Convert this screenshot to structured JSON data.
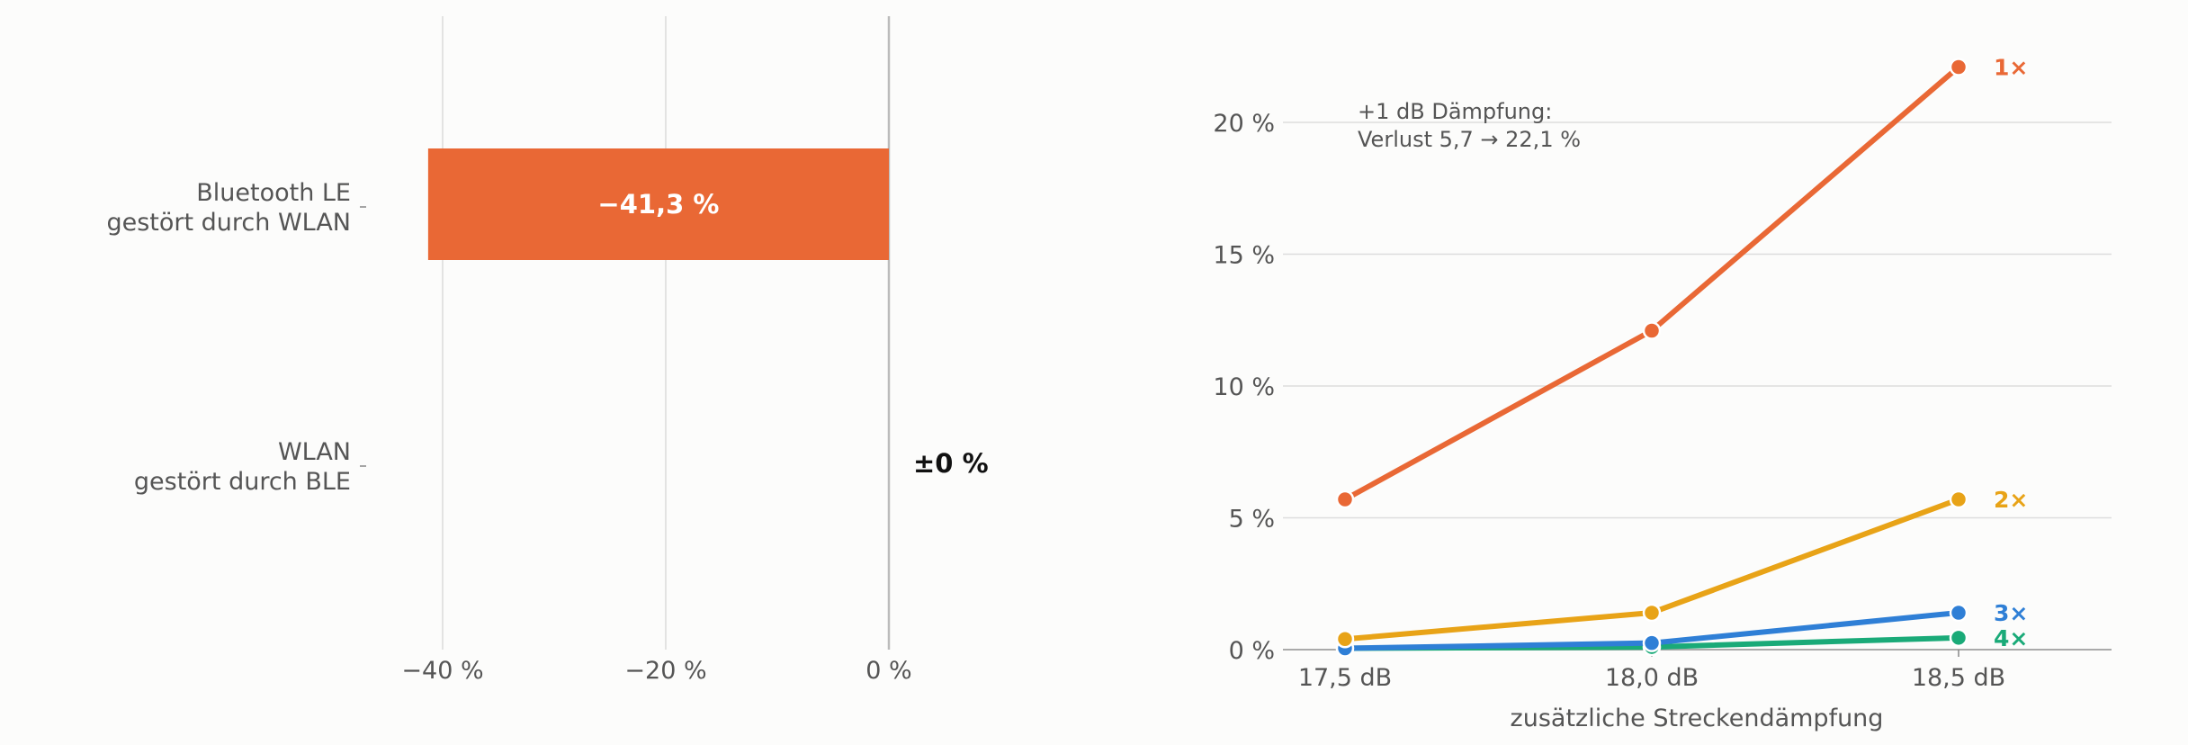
{
  "chart_data": [
    {
      "type": "bar",
      "orientation": "horizontal",
      "categories": [
        [
          "Bluetooth LE",
          "gestört durch WLAN"
        ],
        [
          "WLAN",
          "gestört durch BLE"
        ]
      ],
      "values": [
        -41.3,
        0
      ],
      "value_labels": [
        "−41,3 %",
        "±0 %"
      ],
      "xlim": [
        -45,
        0
      ],
      "xticks": [
        -40,
        -20,
        0
      ],
      "xtick_labels": [
        "−40 %",
        "−20 %",
        "0 %"
      ],
      "grid": "vertical",
      "colors": {
        "bar": "#e96835",
        "grid": "#dddddd",
        "zero_line": "#bbbbbb"
      }
    },
    {
      "type": "line",
      "x": [
        17.5,
        18.0,
        18.5
      ],
      "xtick_labels": [
        "17,5 dB",
        "18,0 dB",
        "18,5 dB"
      ],
      "xlabel": "zusätzliche Streckendämpfung",
      "ylim": [
        0,
        23
      ],
      "yticks": [
        0,
        5,
        10,
        15,
        20
      ],
      "ytick_labels": [
        "0 %",
        "5 %",
        "10 %",
        "15 %",
        "20 %"
      ],
      "grid": "horizontal",
      "annotation": [
        "+1 dB Dämpfung:",
        "Verlust 5,7 → 22,1 %"
      ],
      "series": [
        {
          "name": "1×",
          "values": [
            5.7,
            12.1,
            22.1
          ],
          "color": "#e96835"
        },
        {
          "name": "2×",
          "values": [
            0.4,
            1.4,
            5.7
          ],
          "color": "#e8a317"
        },
        {
          "name": "3×",
          "values": [
            0.05,
            0.25,
            1.4
          ],
          "color": "#2f7fd6"
        },
        {
          "name": "4×",
          "values": [
            0.05,
            0.1,
            0.45
          ],
          "color": "#1aaa78"
        }
      ]
    }
  ]
}
